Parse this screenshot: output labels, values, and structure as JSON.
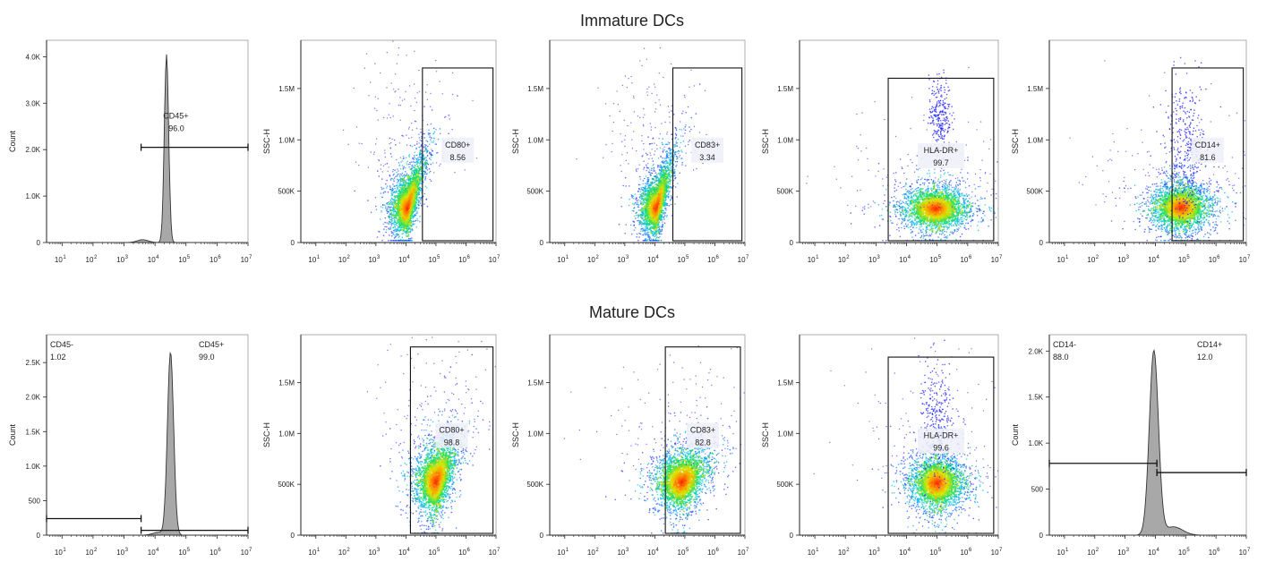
{
  "colors": {
    "fill": "#a8a8a8",
    "axis": "#222222",
    "gate": "#111111",
    "cool": "#1a1aff",
    "hot": "#ff2000",
    "label_bg": "#eef0f8"
  },
  "chart_data": [
    {
      "row": "Immature DCs",
      "type": "histogram",
      "ylabel": "Count",
      "ylim": [
        0,
        4200
      ],
      "yticks": [
        {
          "v": 0,
          "l": "0"
        },
        {
          "v": 1000,
          "l": "1.0K"
        },
        {
          "v": 2000,
          "l": "2.0K"
        },
        {
          "v": 3000,
          "l": "3.0K"
        },
        {
          "v": 4000,
          "l": "4.0K"
        }
      ],
      "xlim_log10": [
        0.5,
        7
      ],
      "peak": {
        "x": 4.37,
        "sigma": 0.07,
        "height": 4050
      },
      "shoulder": {
        "x": 3.6,
        "height": 60
      },
      "gates": [
        {
          "name": "CD45+",
          "value": "96.0",
          "from": 3.55,
          "to": 7.0,
          "y": 2050
        }
      ]
    },
    {
      "row": "Immature DCs",
      "type": "scatter",
      "ylabel": "SSC-H",
      "ylim": [
        0,
        1900000
      ],
      "yticks": [
        {
          "v": 0,
          "l": "0"
        },
        {
          "v": 500000,
          "l": "500K"
        },
        {
          "v": 1000000,
          "l": "1.0M"
        },
        {
          "v": 1500000,
          "l": "1.5M"
        }
      ],
      "xlim_log10": [
        0.5,
        7
      ],
      "cluster": {
        "x": 4.05,
        "y": 330000,
        "sx": 0.28,
        "sy": 150000,
        "tilt": 420000
      },
      "gate": {
        "name": "CD80+",
        "value": "8.56",
        "x0": 4.55,
        "x1": 6.9,
        "y0": 0,
        "y1": 1700000
      }
    },
    {
      "row": "Immature DCs",
      "type": "scatter",
      "ylabel": "SSC-H",
      "ylim": [
        0,
        1900000
      ],
      "yticks": [
        {
          "v": 0,
          "l": "0"
        },
        {
          "v": 500000,
          "l": "500K"
        },
        {
          "v": 1000000,
          "l": "1.0M"
        },
        {
          "v": 1500000,
          "l": "1.5M"
        }
      ],
      "xlim_log10": [
        0.5,
        7
      ],
      "cluster": {
        "x": 4.05,
        "y": 330000,
        "sx": 0.27,
        "sy": 140000,
        "tilt": 420000
      },
      "gate": {
        "name": "CD83+",
        "value": "3.34",
        "x0": 4.6,
        "x1": 6.9,
        "y0": 0,
        "y1": 1700000
      }
    },
    {
      "row": "Immature DCs",
      "type": "scatter",
      "ylabel": "SSC-H",
      "ylim": [
        0,
        1900000
      ],
      "yticks": [
        {
          "v": 0,
          "l": "0"
        },
        {
          "v": 500000,
          "l": "500K"
        },
        {
          "v": 1000000,
          "l": "1.0M"
        },
        {
          "v": 1500000,
          "l": "1.5M"
        }
      ],
      "xlim_log10": [
        0.5,
        7
      ],
      "cluster": {
        "x": 4.95,
        "y": 330000,
        "sx": 0.55,
        "sy": 110000,
        "tilt": 0
      },
      "extra": {
        "x": 5.1,
        "y": 1250000,
        "sx": 0.18,
        "sy": 180000,
        "n": 260
      },
      "gate": {
        "name": "HLA-DR+",
        "value": "99.7",
        "x0": 3.4,
        "x1": 6.85,
        "y0": 0,
        "y1": 1600000
      }
    },
    {
      "row": "Immature DCs",
      "type": "scatter",
      "ylabel": "SSC-H",
      "ylim": [
        0,
        1900000
      ],
      "yticks": [
        {
          "v": 0,
          "l": "0"
        },
        {
          "v": 500000,
          "l": "500K"
        },
        {
          "v": 1000000,
          "l": "1.0M"
        },
        {
          "v": 1500000,
          "l": "1.5M"
        }
      ],
      "xlim_log10": [
        0.5,
        7
      ],
      "cluster": {
        "x": 4.85,
        "y": 340000,
        "sx": 0.5,
        "sy": 120000,
        "tilt": 0
      },
      "extra": {
        "x": 5.0,
        "y": 900000,
        "sx": 0.35,
        "sy": 350000,
        "n": 380
      },
      "gate": {
        "name": "CD14+",
        "value": "81.6",
        "x0": 4.55,
        "x1": 6.9,
        "y0": 0,
        "y1": 1700000
      }
    },
    {
      "row": "Mature DCs",
      "type": "histogram",
      "ylabel": "Count",
      "ylim": [
        0,
        2800
      ],
      "yticks": [
        {
          "v": 0,
          "l": "0"
        },
        {
          "v": 500,
          "l": "500"
        },
        {
          "v": 1000,
          "l": "1.0K"
        },
        {
          "v": 1500,
          "l": "1.5K"
        },
        {
          "v": 2000,
          "l": "2.0K"
        },
        {
          "v": 2500,
          "l": "2.5K"
        }
      ],
      "xlim_log10": [
        0.5,
        7
      ],
      "peak": {
        "x": 4.5,
        "sigma": 0.1,
        "height": 2650
      },
      "shoulder": {
        "x": 4.1,
        "height": 40
      },
      "gates": [
        {
          "name": "CD45-",
          "value": "1.02",
          "from": 0.5,
          "to": 3.55,
          "y": 240,
          "corner": "left"
        },
        {
          "name": "CD45+",
          "value": "99.0",
          "from": 3.55,
          "to": 7.0,
          "y": 70,
          "corner": "right"
        }
      ]
    },
    {
      "row": "Mature DCs",
      "type": "scatter",
      "ylabel": "SSC-H",
      "ylim": [
        0,
        1900000
      ],
      "yticks": [
        {
          "v": 0,
          "l": "0"
        },
        {
          "v": 500000,
          "l": "500K"
        },
        {
          "v": 1000000,
          "l": "1.0M"
        },
        {
          "v": 1500000,
          "l": "1.5M"
        }
      ],
      "xlim_log10": [
        0.5,
        7
      ],
      "cluster": {
        "x": 5.0,
        "y": 520000,
        "sx": 0.35,
        "sy": 180000,
        "tilt": 280000
      },
      "gate": {
        "name": "CD80+",
        "value": "98.8",
        "x0": 4.15,
        "x1": 6.9,
        "y0": 0,
        "y1": 1850000
      }
    },
    {
      "row": "Mature DCs",
      "type": "scatter",
      "ylabel": "SSC-H",
      "ylim": [
        0,
        1900000
      ],
      "yticks": [
        {
          "v": 0,
          "l": "0"
        },
        {
          "v": 500000,
          "l": "500K"
        },
        {
          "v": 1000000,
          "l": "1.0M"
        },
        {
          "v": 1500000,
          "l": "1.5M"
        }
      ],
      "xlim_log10": [
        0.5,
        7
      ],
      "cluster": {
        "x": 4.9,
        "y": 520000,
        "sx": 0.45,
        "sy": 150000,
        "tilt": 150000
      },
      "gate": {
        "name": "CD83+",
        "value": "82.8",
        "x0": 4.35,
        "x1": 6.85,
        "y0": 0,
        "y1": 1850000
      }
    },
    {
      "row": "Mature DCs",
      "type": "scatter",
      "ylabel": "SSC-H",
      "ylim": [
        0,
        1900000
      ],
      "yticks": [
        {
          "v": 0,
          "l": "0"
        },
        {
          "v": 500000,
          "l": "500K"
        },
        {
          "v": 1000000,
          "l": "1.0M"
        },
        {
          "v": 1500000,
          "l": "1.5M"
        }
      ],
      "xlim_log10": [
        0.5,
        7
      ],
      "cluster": {
        "x": 5.0,
        "y": 510000,
        "sx": 0.45,
        "sy": 140000,
        "tilt": 0
      },
      "extra": {
        "x": 5.0,
        "y": 1100000,
        "sx": 0.3,
        "sy": 300000,
        "n": 300
      },
      "gate": {
        "name": "HLA-DR+",
        "value": "99.6",
        "x0": 3.4,
        "x1": 6.85,
        "y0": 0,
        "y1": 1750000
      }
    },
    {
      "row": "Mature DCs",
      "type": "histogram",
      "ylabel": "Count",
      "ylim": [
        0,
        2100
      ],
      "yticks": [
        {
          "v": 0,
          "l": "0"
        },
        {
          "v": 500,
          "l": "500"
        },
        {
          "v": 1000,
          "l": "1.0K"
        },
        {
          "v": 1500,
          "l": "1.5K"
        },
        {
          "v": 2000,
          "l": "2.0K"
        }
      ],
      "xlim_log10": [
        0.5,
        7
      ],
      "peak": {
        "x": 3.95,
        "sigma": 0.15,
        "height": 2000
      },
      "tail": {
        "x": 4.6,
        "sigma": 0.3,
        "height": 90
      },
      "gates": [
        {
          "name": "CD14-",
          "value": "88.0",
          "from": 0.5,
          "to": 4.05,
          "y": 780,
          "corner": "left"
        },
        {
          "name": "CD14+",
          "value": "12.0",
          "from": 4.05,
          "to": 7.0,
          "y": 680,
          "corner": "right"
        }
      ]
    }
  ],
  "rows": [
    "Immature DCs",
    "Mature DCs"
  ],
  "xticks": [
    1,
    2,
    3,
    4,
    5,
    6,
    7
  ]
}
